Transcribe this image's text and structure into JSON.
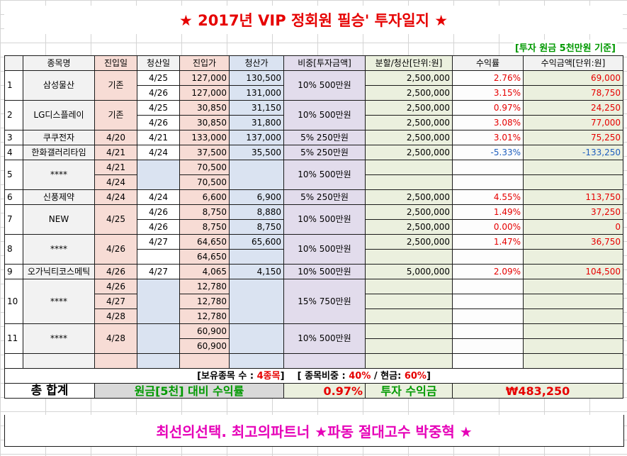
{
  "title": "★ 2017년 VIP 정회원 필승' 투자일지 ★",
  "basis": "[투자 원금 5천만원 기준]",
  "headers": [
    "",
    "종목명",
    "진입일",
    "청산일",
    "진입가",
    "청산가",
    "비중[투자금액]",
    "분할/청산[단위:원]",
    "수익률",
    "수익금액[단위:원]"
  ],
  "stocks": [
    {
      "no": "1",
      "name": "삼성물산",
      "entry_date": "기존",
      "weight": "10% 500만원",
      "rows": [
        {
          "exit_date": "4/25",
          "entry_price": "127,000",
          "exit_price": "130,500",
          "split": "2,500,000",
          "rate": "2.76%",
          "profit": "69,000"
        },
        {
          "exit_date": "4/26",
          "entry_price": "127,000",
          "exit_price": "131,000",
          "split": "2,500,000",
          "rate": "3.15%",
          "profit": "78,750"
        }
      ]
    },
    {
      "no": "2",
      "name": "LG디스플레이",
      "entry_date": "기존",
      "weight": "10% 500만원",
      "rows": [
        {
          "exit_date": "4/25",
          "entry_price": "30,850",
          "exit_price": "31,150",
          "split": "2,500,000",
          "rate": "0.97%",
          "profit": "24,250"
        },
        {
          "exit_date": "4/26",
          "entry_price": "30,850",
          "exit_price": "31,800",
          "split": "2,500,000",
          "rate": "3.08%",
          "profit": "77,000"
        }
      ]
    },
    {
      "no": "3",
      "name": "쿠쿠전자",
      "entry_date": "4/20",
      "weight": "5% 250만원",
      "rows": [
        {
          "exit_date": "4/21",
          "entry_price": "133,000",
          "exit_price": "137,000",
          "split": "2,500,000",
          "rate": "3.01%",
          "profit": "75,250"
        }
      ]
    },
    {
      "no": "4",
      "name": "한화갤러리타임",
      "entry_date": "4/21",
      "weight": "5% 250만원",
      "rows": [
        {
          "exit_date": "4/24",
          "entry_price": "37,500",
          "exit_price": "35,500",
          "split": "2,500,000",
          "rate": "-5.33%",
          "profit": "-133,250"
        }
      ]
    },
    {
      "no": "5",
      "name": "****",
      "weight": "10% 500만원",
      "rows": [
        {
          "entry_date": "4/21",
          "entry_price": "70,500"
        },
        {
          "entry_date": "4/24",
          "entry_price": "70,500"
        }
      ]
    },
    {
      "no": "6",
      "name": "신풍제약",
      "entry_date": "4/24",
      "weight": "5% 250만원",
      "rows": [
        {
          "exit_date": "4/24",
          "entry_price": "6,600",
          "exit_price": "6,900",
          "split": "2,500,000",
          "rate": "4.55%",
          "profit": "113,750"
        }
      ]
    },
    {
      "no": "7",
      "name": "NEW",
      "entry_date": "4/25",
      "weight": "10% 500만원",
      "rows": [
        {
          "exit_date": "4/26",
          "entry_price": "8,750",
          "exit_price": "8,880",
          "split": "2,500,000",
          "rate": "1.49%",
          "profit": "37,250"
        },
        {
          "exit_date": "4/26",
          "entry_price": "8,750",
          "exit_price": "8,750",
          "split": "2,500,000",
          "rate": "0.00%",
          "profit": "0"
        }
      ]
    },
    {
      "no": "8",
      "name": "****",
      "entry_date": "4/26",
      "weight": "10% 500만원",
      "rows": [
        {
          "exit_date": "4/27",
          "entry_price": "64,650",
          "exit_price": "65,600",
          "split": "2,500,000",
          "rate": "1.47%",
          "profit": "36,750"
        },
        {
          "entry_price": "64,650"
        }
      ]
    },
    {
      "no": "9",
      "name": "오가닉티코스메틱",
      "entry_date": "4/26",
      "weight": "10% 500만원",
      "rows": [
        {
          "exit_date": "4/27",
          "entry_price": "4,065",
          "exit_price": "4,150",
          "split": "5,000,000",
          "rate": "2.09%",
          "profit": "104,500"
        }
      ]
    },
    {
      "no": "10",
      "name": "****",
      "weight": "15% 750만원",
      "rows": [
        {
          "entry_date": "4/26",
          "entry_price": "12,780"
        },
        {
          "entry_date": "4/27",
          "entry_price": "12,780"
        },
        {
          "entry_date": "4/28",
          "entry_price": "12,780"
        }
      ]
    },
    {
      "no": "11",
      "name": "****",
      "entry_date": "4/28",
      "weight": "10% 500만원",
      "rows": [
        {
          "entry_price": "60,900"
        },
        {
          "entry_price": "60,900"
        }
      ]
    }
  ],
  "summary": {
    "holdings_label": "[보유종목 수 : ",
    "holdings_value": "4종목",
    "holdings_close": "]",
    "ratio_label": "[ 종목비중 : ",
    "stock_ratio": "40%",
    "cash_label": " / 현금: ",
    "cash_ratio": "60%",
    "ratio_close": "]"
  },
  "total": {
    "label": "총 합계",
    "principal_label": "원금[5천] 대비 수익률",
    "rate": "0.97%",
    "profit_label": "투자 수익금",
    "profit": "₩483,250"
  },
  "footer": "최선의선택. 최고의파트너 ★파동 절대고수 박중혁 ★",
  "colors": {
    "title": "#e60000",
    "basis": "#009900",
    "footer": "#e600b8",
    "negative": "#1f5fbf"
  }
}
